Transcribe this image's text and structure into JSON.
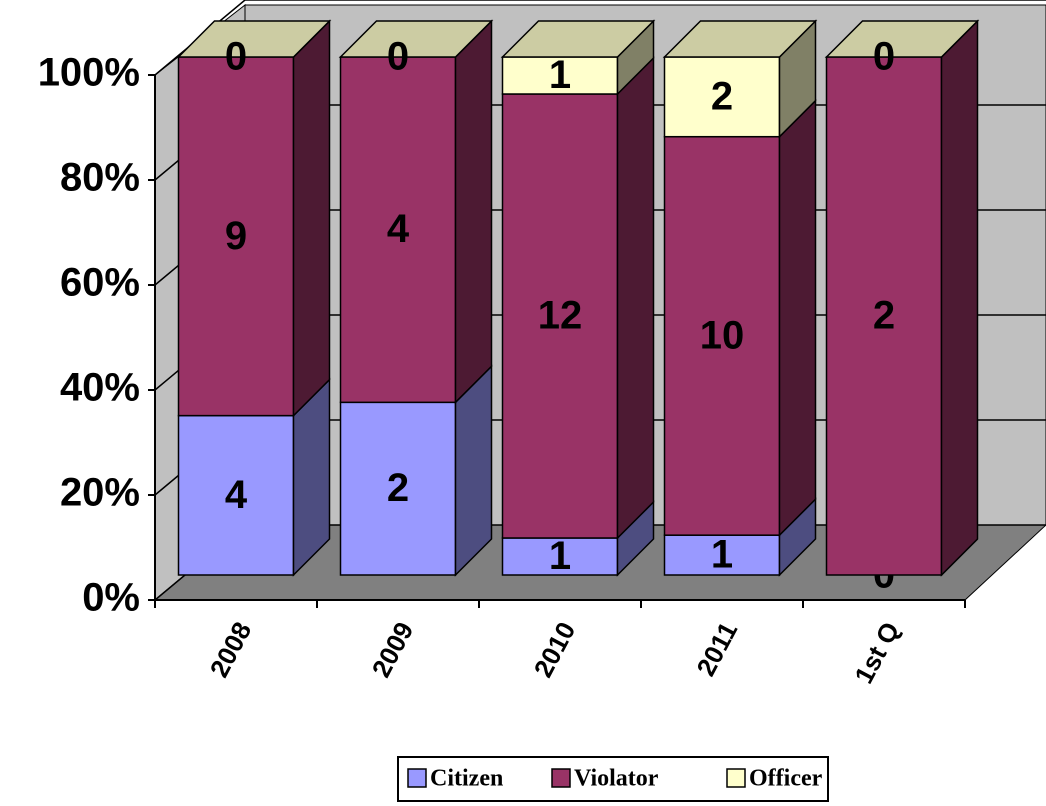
{
  "chart_data": {
    "type": "bar",
    "stacking": "percent",
    "categories": [
      "2008",
      "2009",
      "2010",
      "2011",
      "1st Q"
    ],
    "series": [
      {
        "name": "Citizen",
        "color": "#9999ff",
        "values": [
          4,
          2,
          1,
          1,
          0
        ]
      },
      {
        "name": "Violator",
        "color": "#993366",
        "values": [
          9,
          4,
          12,
          10,
          2
        ]
      },
      {
        "name": "Officer",
        "color": "#ffffcc",
        "values": [
          0,
          0,
          1,
          2,
          0
        ]
      }
    ],
    "ylim": [
      0,
      100
    ],
    "yticks": [
      {
        "value": 0,
        "label": "0%"
      },
      {
        "value": 20,
        "label": "20%"
      },
      {
        "value": 40,
        "label": "40%"
      },
      {
        "value": 60,
        "label": "60%"
      },
      {
        "value": 80,
        "label": "80%"
      },
      {
        "value": 100,
        "label": "100%"
      }
    ],
    "grid": true,
    "legend": "bottom"
  }
}
